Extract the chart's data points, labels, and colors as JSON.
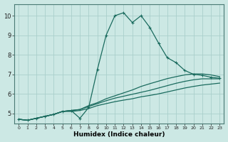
{
  "xlabel": "Humidex (Indice chaleur)",
  "ylabel": "",
  "background_color": "#cce8e4",
  "grid_color": "#aacfcb",
  "line_color": "#1a6b5e",
  "xlim": [
    -0.5,
    23.5
  ],
  "ylim": [
    4.5,
    10.6
  ],
  "xticks": [
    0,
    1,
    2,
    3,
    4,
    5,
    6,
    7,
    8,
    9,
    10,
    11,
    12,
    13,
    14,
    15,
    16,
    17,
    18,
    19,
    20,
    21,
    22,
    23
  ],
  "yticks": [
    5,
    6,
    7,
    8,
    9,
    10
  ],
  "series": [
    {
      "x": [
        0,
        1,
        2,
        3,
        4,
        5,
        6,
        7,
        8,
        9,
        10,
        11,
        12,
        13,
        14,
        15,
        16,
        17,
        18,
        19,
        20,
        21,
        22,
        23
      ],
      "y": [
        4.7,
        4.65,
        4.75,
        4.85,
        4.95,
        5.1,
        5.15,
        4.75,
        5.3,
        7.25,
        9.0,
        10.0,
        10.15,
        9.65,
        10.0,
        9.4,
        8.6,
        7.85,
        7.6,
        7.2,
        7.0,
        6.95,
        6.85,
        6.8
      ],
      "marker": true
    },
    {
      "x": [
        0,
        1,
        2,
        3,
        4,
        5,
        6,
        7,
        8,
        9,
        10,
        11,
        12,
        13,
        14,
        15,
        16,
        17,
        18,
        19,
        20,
        21,
        22,
        23
      ],
      "y": [
        4.7,
        4.65,
        4.75,
        4.85,
        4.95,
        5.1,
        5.15,
        5.2,
        5.4,
        5.55,
        5.75,
        5.9,
        6.05,
        6.2,
        6.38,
        6.52,
        6.65,
        6.78,
        6.88,
        6.97,
        7.02,
        7.02,
        6.97,
        6.88
      ],
      "marker": false
    },
    {
      "x": [
        0,
        1,
        2,
        3,
        4,
        5,
        6,
        7,
        8,
        9,
        10,
        11,
        12,
        13,
        14,
        15,
        16,
        17,
        18,
        19,
        20,
        21,
        22,
        23
      ],
      "y": [
        4.7,
        4.65,
        4.75,
        4.85,
        4.95,
        5.1,
        5.15,
        5.2,
        5.35,
        5.5,
        5.65,
        5.78,
        5.88,
        5.98,
        6.08,
        6.18,
        6.3,
        6.42,
        6.54,
        6.64,
        6.72,
        6.77,
        6.77,
        6.77
      ],
      "marker": false
    },
    {
      "x": [
        0,
        1,
        2,
        3,
        4,
        5,
        6,
        7,
        8,
        9,
        10,
        11,
        12,
        13,
        14,
        15,
        16,
        17,
        18,
        19,
        20,
        21,
        22,
        23
      ],
      "y": [
        4.7,
        4.65,
        4.75,
        4.85,
        4.95,
        5.1,
        5.1,
        5.15,
        5.25,
        5.4,
        5.5,
        5.6,
        5.68,
        5.75,
        5.85,
        5.92,
        6.0,
        6.1,
        6.2,
        6.3,
        6.38,
        6.45,
        6.5,
        6.55
      ],
      "marker": false
    }
  ]
}
